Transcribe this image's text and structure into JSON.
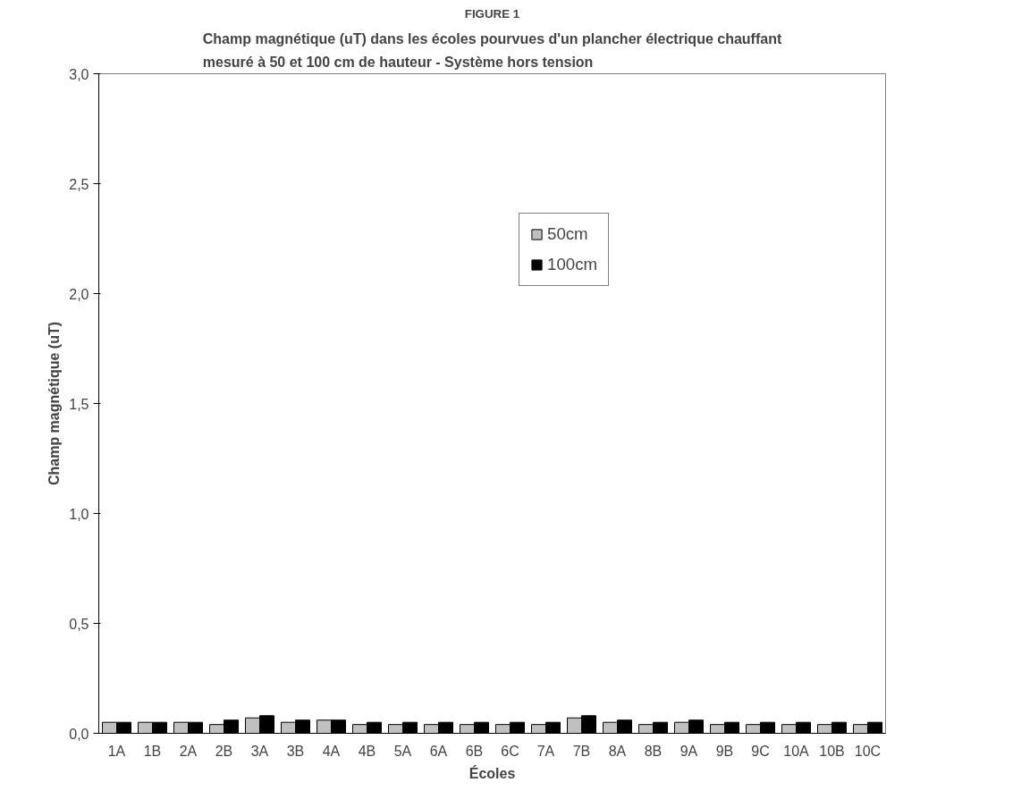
{
  "chart_data": {
    "type": "bar",
    "title": "FIGURE 1",
    "subtitle": "Champ magnétique (uT) dans les écoles pourvues d'un plancher électrique chauffant mesuré à 50 et 100 cm de hauteur - Système hors tension",
    "xlabel": "Écoles",
    "ylabel": "Champ magnétique (uT)",
    "categories": [
      "1A",
      "1B",
      "2A",
      "2B",
      "3A",
      "3B",
      "4A",
      "4B",
      "5A",
      "6A",
      "6B",
      "6C",
      "7A",
      "7B",
      "8A",
      "8B",
      "9A",
      "9B",
      "9C",
      "10A",
      "10B",
      "10C"
    ],
    "series": [
      {
        "name": "50cm",
        "color": "#c0c0c0",
        "values": [
          0.05,
          0.05,
          0.05,
          0.04,
          0.07,
          0.05,
          0.06,
          0.04,
          0.04,
          0.04,
          0.04,
          0.04,
          0.04,
          0.07,
          0.05,
          0.04,
          0.05,
          0.04,
          0.04,
          0.04,
          0.04,
          0.04
        ]
      },
      {
        "name": "100cm",
        "color": "#000000",
        "values": [
          0.05,
          0.05,
          0.05,
          0.06,
          0.08,
          0.06,
          0.06,
          0.05,
          0.05,
          0.05,
          0.05,
          0.05,
          0.05,
          0.08,
          0.06,
          0.05,
          0.06,
          0.05,
          0.05,
          0.05,
          0.05,
          0.05
        ]
      }
    ],
    "ylim": [
      0,
      3
    ],
    "yticks": [
      {
        "value": 0,
        "label": "0,0"
      },
      {
        "value": 0.5,
        "label": "0,5"
      },
      {
        "value": 1,
        "label": "1,0"
      },
      {
        "value": 1.5,
        "label": "1,5"
      },
      {
        "value": 2,
        "label": "2,0"
      },
      {
        "value": 2.5,
        "label": "2,5"
      },
      {
        "value": 3,
        "label": "3,0"
      }
    ],
    "grid": false,
    "legend": "top right"
  }
}
